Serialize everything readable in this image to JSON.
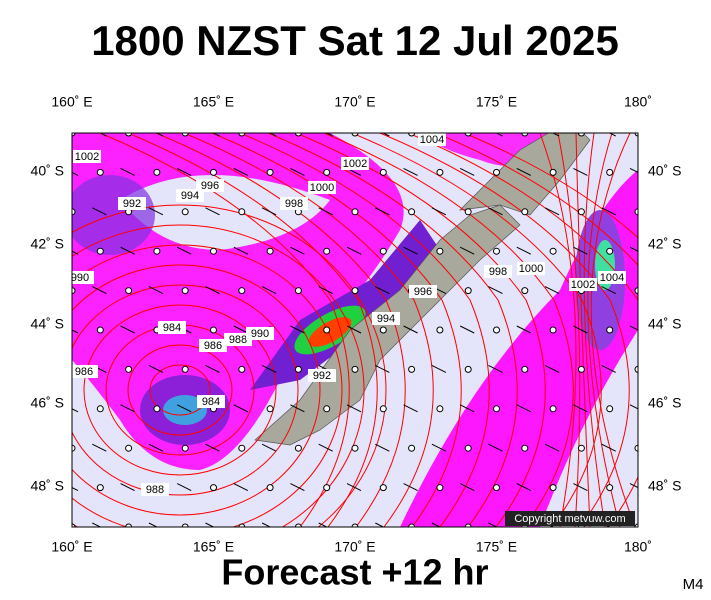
{
  "header": {
    "title": "1800 NZST Sat 12 Jul 2025"
  },
  "map": {
    "lon_labels": [
      "160˚ E",
      "165˚ E",
      "170˚ E",
      "175˚ E",
      "180˚"
    ],
    "lat_labels": [
      "40˚ S",
      "42˚ S",
      "44˚ S",
      "46˚ S",
      "48˚ S"
    ],
    "isobar_labels": [
      "1002",
      "1004",
      "1002",
      "1000",
      "996",
      "994",
      "992",
      "998",
      "990",
      "984",
      "986",
      "988",
      "990",
      "986",
      "994",
      "996",
      "998",
      "1000",
      "1002",
      "1004",
      "992",
      "984",
      "988"
    ],
    "copyright": "Copyright metvuw.com"
  },
  "footer": {
    "forecast": "Forecast +12 hr",
    "model": "M4"
  }
}
